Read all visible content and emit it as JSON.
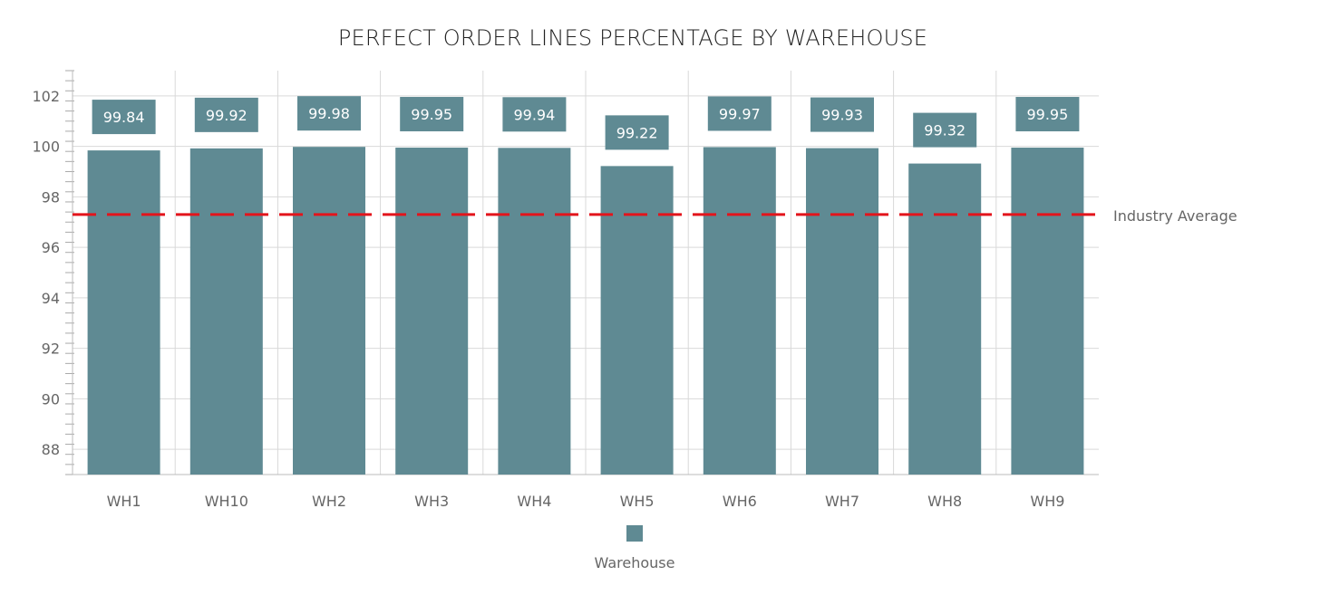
{
  "chart_data": {
    "type": "bar",
    "title": "PERFECT ORDER LINES PERCENTAGE BY WAREHOUSE",
    "categories": [
      "WH1",
      "WH10",
      "WH2",
      "WH3",
      "WH4",
      "WH5",
      "WH6",
      "WH7",
      "WH8",
      "WH9"
    ],
    "series": [
      {
        "name": "Warehouse",
        "values": [
          99.84,
          99.92,
          99.98,
          99.95,
          99.94,
          99.22,
          99.97,
          99.93,
          99.32,
          99.95
        ],
        "color": "#5f8a93"
      }
    ],
    "data_labels": [
      "99.84",
      "99.92",
      "99.98",
      "99.95",
      "99.94",
      "99.22",
      "99.97",
      "99.93",
      "99.32",
      "99.95"
    ],
    "reference_line": {
      "label": "Industry Average",
      "value": 97.3,
      "color": "#e3141b",
      "style": "dashed"
    },
    "ylim": [
      87,
      103
    ],
    "yticks": [
      88,
      90,
      92,
      94,
      96,
      98,
      100,
      102
    ],
    "xlabel": "",
    "ylabel": "",
    "grid": true,
    "legend": "bottom"
  }
}
